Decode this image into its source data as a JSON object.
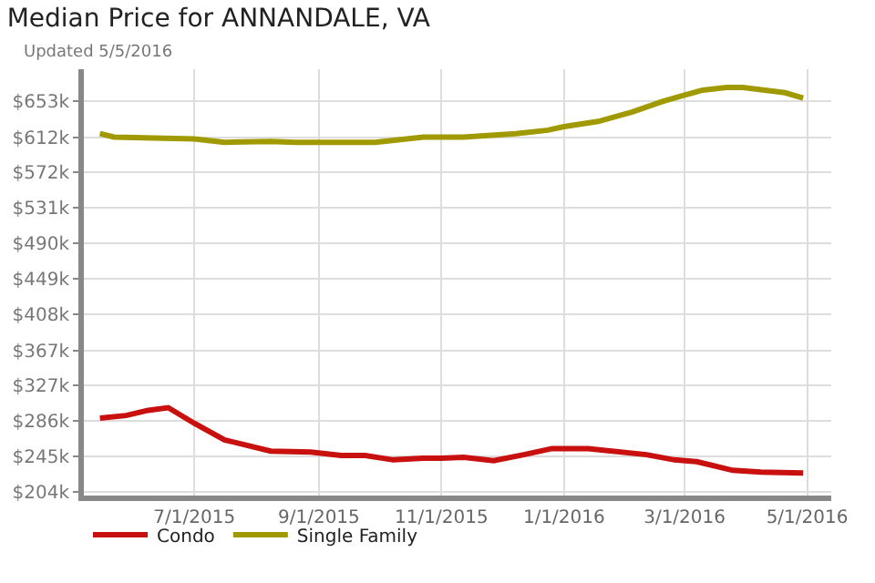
{
  "chart_data": {
    "type": "line",
    "title": "Median Price for ANNANDALE, VA",
    "subtitle": "Updated 5/5/2016",
    "xlim": [
      "2015-05-07",
      "2016-05-13"
    ],
    "xticks": [
      {
        "value": "2015-07-01",
        "label": "7/1/2015"
      },
      {
        "value": "2015-09-01",
        "label": "9/1/2015"
      },
      {
        "value": "2015-11-01",
        "label": "11/1/2015"
      },
      {
        "value": "2016-01-01",
        "label": "1/1/2016"
      },
      {
        "value": "2016-03-01",
        "label": "3/1/2016"
      },
      {
        "value": "2016-05-01",
        "label": "5/1/2016"
      }
    ],
    "ylim": [
      200,
      690
    ],
    "yticks": [
      {
        "value": 204,
        "label": "$204k"
      },
      {
        "value": 245,
        "label": "$245k"
      },
      {
        "value": 286,
        "label": "$286k"
      },
      {
        "value": 327,
        "label": "$327k"
      },
      {
        "value": 367,
        "label": "$367k"
      },
      {
        "value": 408,
        "label": "$408k"
      },
      {
        "value": 449,
        "label": "$449k"
      },
      {
        "value": 490,
        "label": "$490k"
      },
      {
        "value": 531,
        "label": "$531k"
      },
      {
        "value": 572,
        "label": "$572k"
      },
      {
        "value": 612,
        "label": "$612k"
      },
      {
        "value": 653,
        "label": "$653k"
      }
    ],
    "grid": true,
    "legend": "bottom left",
    "marker": "none",
    "line_style": "solid",
    "series": [
      {
        "name": "Condo",
        "color": "#c8100f",
        "x": [
          "2015-05-15",
          "2015-05-28",
          "2015-06-08",
          "2015-06-18",
          "2015-07-01",
          "2015-07-16",
          "2015-08-08",
          "2015-08-28",
          "2015-09-12",
          "2015-09-24",
          "2015-10-08",
          "2015-10-23",
          "2015-11-01",
          "2015-11-12",
          "2015-11-27",
          "2015-12-12",
          "2015-12-26",
          "2016-01-13",
          "2016-02-11",
          "2016-02-25",
          "2016-03-07",
          "2016-03-25",
          "2016-04-08",
          "2016-04-29"
        ],
        "values": [
          289,
          292,
          298,
          301,
          283,
          264,
          251,
          250,
          246,
          246,
          241,
          243,
          243,
          244,
          240,
          247,
          254,
          254,
          247,
          241,
          239,
          229,
          227,
          226
        ]
      },
      {
        "name": "Single Family",
        "color": "#a09a00",
        "x": [
          "2015-05-15",
          "2015-05-22",
          "2015-07-01",
          "2015-07-16",
          "2015-08-08",
          "2015-08-20",
          "2015-09-29",
          "2015-10-23",
          "2015-11-12",
          "2015-12-08",
          "2015-12-24",
          "2016-01-01",
          "2016-01-18",
          "2016-02-04",
          "2016-02-19",
          "2016-02-28",
          "2016-03-10",
          "2016-03-22",
          "2016-03-30",
          "2016-04-20",
          "2016-04-29"
        ],
        "values": [
          616,
          612,
          610,
          606,
          607,
          606,
          606,
          612,
          612,
          616,
          620,
          624,
          630,
          641,
          653,
          659,
          666,
          669,
          669,
          663,
          657
        ]
      }
    ]
  }
}
